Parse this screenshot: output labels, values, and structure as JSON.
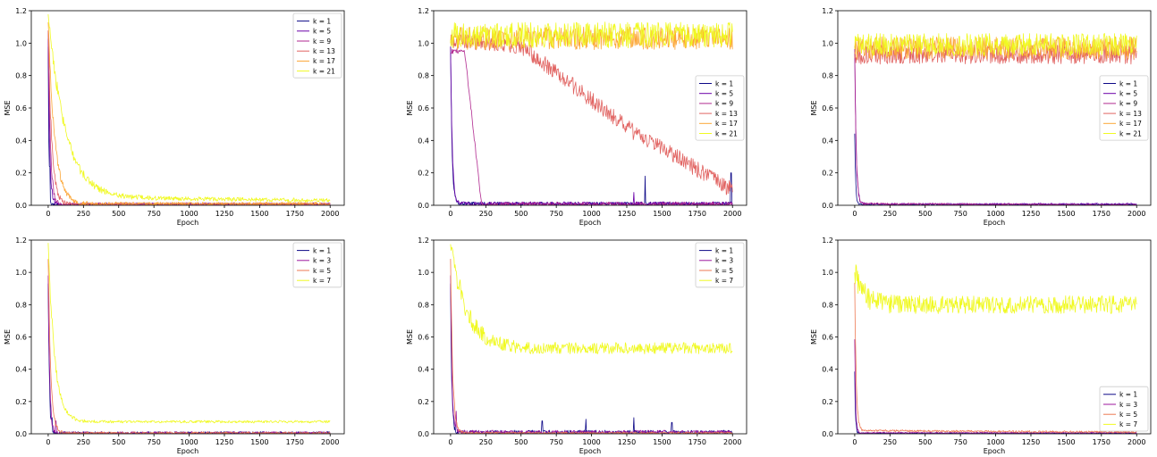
{
  "chart_data": [
    {
      "type": "line",
      "xlabel": "Epoch",
      "ylabel": "MSE",
      "xlim": [
        -120,
        2100
      ],
      "ylim": [
        0,
        1.2
      ],
      "xticks": [
        0,
        250,
        500,
        750,
        1000,
        1250,
        1500,
        1750,
        2000
      ],
      "yticks": [
        0.0,
        0.2,
        0.4,
        0.6,
        0.8,
        1.0,
        1.2
      ],
      "legend_position": "top-right",
      "series": [
        {
          "name": "k = 1",
          "color": "#0d0887",
          "shape": {
            "start": 1.0,
            "end": 0.003,
            "tau": 5,
            "noise": 0.01,
            "spike": 0.24,
            "spike_at": 10
          }
        },
        {
          "name": "k = 5",
          "color": "#6a00a8",
          "shape": {
            "start": 1.05,
            "end": 0.004,
            "tau": 10,
            "noise": 0.012,
            "spike": 0.1,
            "spike_at": 25
          }
        },
        {
          "name": "k = 9",
          "color": "#b12a90",
          "shape": {
            "start": 1.1,
            "end": 0.005,
            "tau": 15,
            "noise": 0.01
          }
        },
        {
          "name": "k = 13",
          "color": "#e16462",
          "shape": {
            "start": 1.1,
            "end": 0.006,
            "tau": 25,
            "noise": 0.01
          }
        },
        {
          "name": "k = 17",
          "color": "#fca636",
          "shape": {
            "start": 1.15,
            "end": 0.01,
            "tau": 45,
            "noise": 0.01
          }
        },
        {
          "name": "k = 21",
          "color": "#f0f921",
          "shape": {
            "start": 1.2,
            "end": 0.05,
            "tau": 120,
            "noise": 0.012,
            "slope": -1e-05
          }
        }
      ]
    },
    {
      "type": "line",
      "xlabel": "Epoch",
      "ylabel": "MSE",
      "xlim": [
        -120,
        2100
      ],
      "ylim": [
        0,
        1.2
      ],
      "xticks": [
        0,
        250,
        500,
        750,
        1000,
        1250,
        1500,
        1750,
        2000
      ],
      "yticks": [
        0.0,
        0.2,
        0.4,
        0.6,
        0.8,
        1.0,
        1.2
      ],
      "legend_position": "center-right",
      "series": [
        {
          "name": "k = 1",
          "color": "#0d0887",
          "shape": {
            "start": 1.0,
            "end": 0.01,
            "tau": 10,
            "noise": 0.01,
            "spikes": [
              [
                1380,
                0.18
              ],
              [
                1990,
                0.2
              ]
            ]
          }
        },
        {
          "name": "k = 5",
          "color": "#6a00a8",
          "shape": {
            "start": 1.0,
            "end": 0.01,
            "tau": 12,
            "noise": 0.012,
            "spikes": [
              [
                1300,
                0.08
              ]
            ]
          }
        },
        {
          "name": "k = 9",
          "color": "#b12a90",
          "shape": {
            "plateau": 0.95,
            "drop_start": 100,
            "drop_end": 220,
            "end": 0.005,
            "noise": 0.015
          }
        },
        {
          "name": "k = 13",
          "color": "#e16462",
          "shape": {
            "linear": [
              [
                0,
                1.02
              ],
              [
                500,
                0.98
              ],
              [
                700,
                0.85
              ],
              [
                1000,
                0.65
              ],
              [
                1300,
                0.45
              ],
              [
                1600,
                0.3
              ],
              [
                2000,
                0.09
              ]
            ],
            "noise": 0.05
          }
        },
        {
          "name": "k = 17",
          "color": "#fca636",
          "shape": {
            "flat": 1.03,
            "noise": 0.07
          }
        },
        {
          "name": "k = 21",
          "color": "#f0f921",
          "shape": {
            "flat": 1.05,
            "noise": 0.08
          }
        }
      ]
    },
    {
      "type": "line",
      "xlabel": "Epoch",
      "ylabel": "MSE",
      "xlim": [
        -120,
        2100
      ],
      "ylim": [
        0,
        1.2
      ],
      "xticks": [
        0,
        250,
        500,
        750,
        1000,
        1250,
        1500,
        1750,
        2000
      ],
      "yticks": [
        0.0,
        0.2,
        0.4,
        0.6,
        0.8,
        1.0,
        1.2
      ],
      "legend_position": "center-right",
      "series": [
        {
          "name": "k = 1",
          "color": "#0d0887",
          "shape": {
            "start": 0.46,
            "end": 0.005,
            "tau": 6,
            "noise": 0.004
          }
        },
        {
          "name": "k = 5",
          "color": "#6a00a8",
          "shape": {
            "start": 1.0,
            "end": 0.008,
            "tau": 10,
            "noise": 0.005
          }
        },
        {
          "name": "k = 9",
          "color": "#b12a90",
          "shape": {
            "start": 1.0,
            "end": 0.01,
            "tau": 10,
            "noise": 0.006,
            "slope": -5e-06
          }
        },
        {
          "name": "k = 13",
          "color": "#e16462",
          "shape": {
            "flat": 0.93,
            "noise": 0.06
          }
        },
        {
          "name": "k = 17",
          "color": "#fca636",
          "shape": {
            "flat": 0.97,
            "noise": 0.07
          }
        },
        {
          "name": "k = 21",
          "color": "#f0f921",
          "shape": {
            "flat": 0.99,
            "noise": 0.07
          }
        }
      ]
    },
    {
      "type": "line",
      "xlabel": "Epoch",
      "ylabel": "MSE",
      "xlim": [
        -120,
        2100
      ],
      "ylim": [
        0,
        1.2
      ],
      "xticks": [
        0,
        250,
        500,
        750,
        1000,
        1250,
        1500,
        1750,
        2000
      ],
      "yticks": [
        0.0,
        0.2,
        0.4,
        0.6,
        0.8,
        1.0,
        1.2
      ],
      "legend_position": "top-right",
      "series": [
        {
          "name": "k = 1",
          "color": "#0d0887",
          "shape": {
            "start": 0.95,
            "end": 0.004,
            "tau": 8,
            "noise": 0.01,
            "spike": 0.1,
            "spike_at": 25
          }
        },
        {
          "name": "k = 3",
          "color": "#9c179e",
          "shape": {
            "start": 1.0,
            "end": 0.004,
            "tau": 10,
            "noise": 0.01,
            "spike": 0.08,
            "spike_at": 55
          }
        },
        {
          "name": "k = 5",
          "color": "#ed7953",
          "shape": {
            "start": 1.1,
            "end": 0.004,
            "tau": 18,
            "noise": 0.008
          }
        },
        {
          "name": "k = 7",
          "color": "#f0f921",
          "shape": {
            "start": 1.2,
            "end": 0.075,
            "tau": 45,
            "noise": 0.008
          }
        }
      ]
    },
    {
      "type": "line",
      "xlabel": "Epoch",
      "ylabel": "MSE",
      "xlim": [
        -120,
        2100
      ],
      "ylim": [
        0,
        1.2
      ],
      "xticks": [
        0,
        250,
        500,
        750,
        1000,
        1250,
        1500,
        1750,
        2000
      ],
      "yticks": [
        0.0,
        0.2,
        0.4,
        0.6,
        0.8,
        1.0,
        1.2
      ],
      "legend_position": "top-right",
      "series": [
        {
          "name": "k = 1",
          "color": "#0d0887",
          "shape": {
            "start": 0.95,
            "end": 0.01,
            "tau": 8,
            "noise": 0.012,
            "spikes": [
              [
                650,
                0.08
              ],
              [
                960,
                0.09
              ],
              [
                1300,
                0.1
              ],
              [
                1570,
                0.07
              ]
            ]
          }
        },
        {
          "name": "k = 3",
          "color": "#9c179e",
          "shape": {
            "start": 1.0,
            "end": 0.01,
            "tau": 10,
            "noise": 0.012,
            "spike": 0.14,
            "spike_at": 40
          }
        },
        {
          "name": "k = 5",
          "color": "#ed7953",
          "shape": {
            "start": 1.1,
            "end": 0.005,
            "tau": 15,
            "noise": 0.006
          }
        },
        {
          "name": "k = 7",
          "color": "#f0f921",
          "shape": {
            "start": 1.2,
            "end": 0.53,
            "tau": 110,
            "noise": 0.035
          }
        }
      ]
    },
    {
      "type": "line",
      "xlabel": "Epoch",
      "ylabel": "MSE",
      "xlim": [
        -120,
        2100
      ],
      "ylim": [
        0,
        1.2
      ],
      "xticks": [
        0,
        250,
        500,
        750,
        1000,
        1250,
        1500,
        1750,
        2000
      ],
      "yticks": [
        0.0,
        0.2,
        0.4,
        0.6,
        0.8,
        1.0,
        1.2
      ],
      "legend_position": "bottom-right",
      "series": [
        {
          "name": "k = 1",
          "color": "#0d0887",
          "shape": {
            "start": 0.4,
            "end": 0.004,
            "tau": 5,
            "noise": 0.003
          }
        },
        {
          "name": "k = 3",
          "color": "#9c179e",
          "shape": {
            "start": 0.6,
            "end": 0.006,
            "tau": 6,
            "noise": 0.004
          }
        },
        {
          "name": "k = 5",
          "color": "#ed7953",
          "shape": {
            "start": 0.95,
            "end": 0.02,
            "tau": 10,
            "noise": 0.006,
            "slope": -5e-06
          }
        },
        {
          "name": "k = 7",
          "color": "#f0f921",
          "shape": {
            "start": 1.03,
            "end": 0.8,
            "tau": 60,
            "noise": 0.055
          }
        }
      ]
    }
  ]
}
